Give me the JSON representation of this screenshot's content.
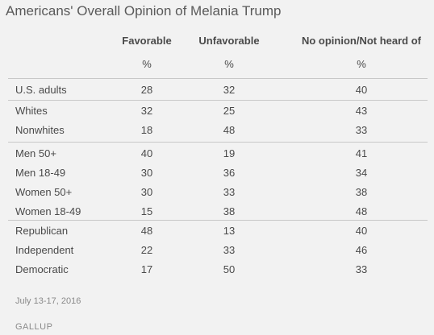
{
  "chart_data": {
    "type": "table",
    "title": "Americans' Overall Opinion of Melania Trump",
    "columns": [
      "Favorable",
      "Unfavorable",
      "No opinion/Not heard of"
    ],
    "units": [
      "%",
      "%",
      "%"
    ],
    "groups": [
      [
        {
          "label": "U.S. adults",
          "values": [
            28,
            32,
            40
          ]
        }
      ],
      [
        {
          "label": "Whites",
          "values": [
            32,
            25,
            43
          ]
        },
        {
          "label": "Nonwhites",
          "values": [
            18,
            48,
            33
          ]
        }
      ],
      [
        {
          "label": "Men 50+",
          "values": [
            40,
            19,
            41
          ]
        },
        {
          "label": "Men 18-49",
          "values": [
            30,
            36,
            34
          ]
        },
        {
          "label": "Women 50+",
          "values": [
            30,
            33,
            38
          ]
        },
        {
          "label": "Women 18-49",
          "values": [
            15,
            38,
            48
          ]
        }
      ],
      [
        {
          "label": "Republican",
          "values": [
            48,
            13,
            40
          ]
        },
        {
          "label": "Independent",
          "values": [
            22,
            33,
            46
          ]
        },
        {
          "label": "Democratic",
          "values": [
            17,
            50,
            33
          ]
        }
      ]
    ]
  },
  "footer": {
    "date": "July 13-17, 2016",
    "source": "GALLUP"
  }
}
